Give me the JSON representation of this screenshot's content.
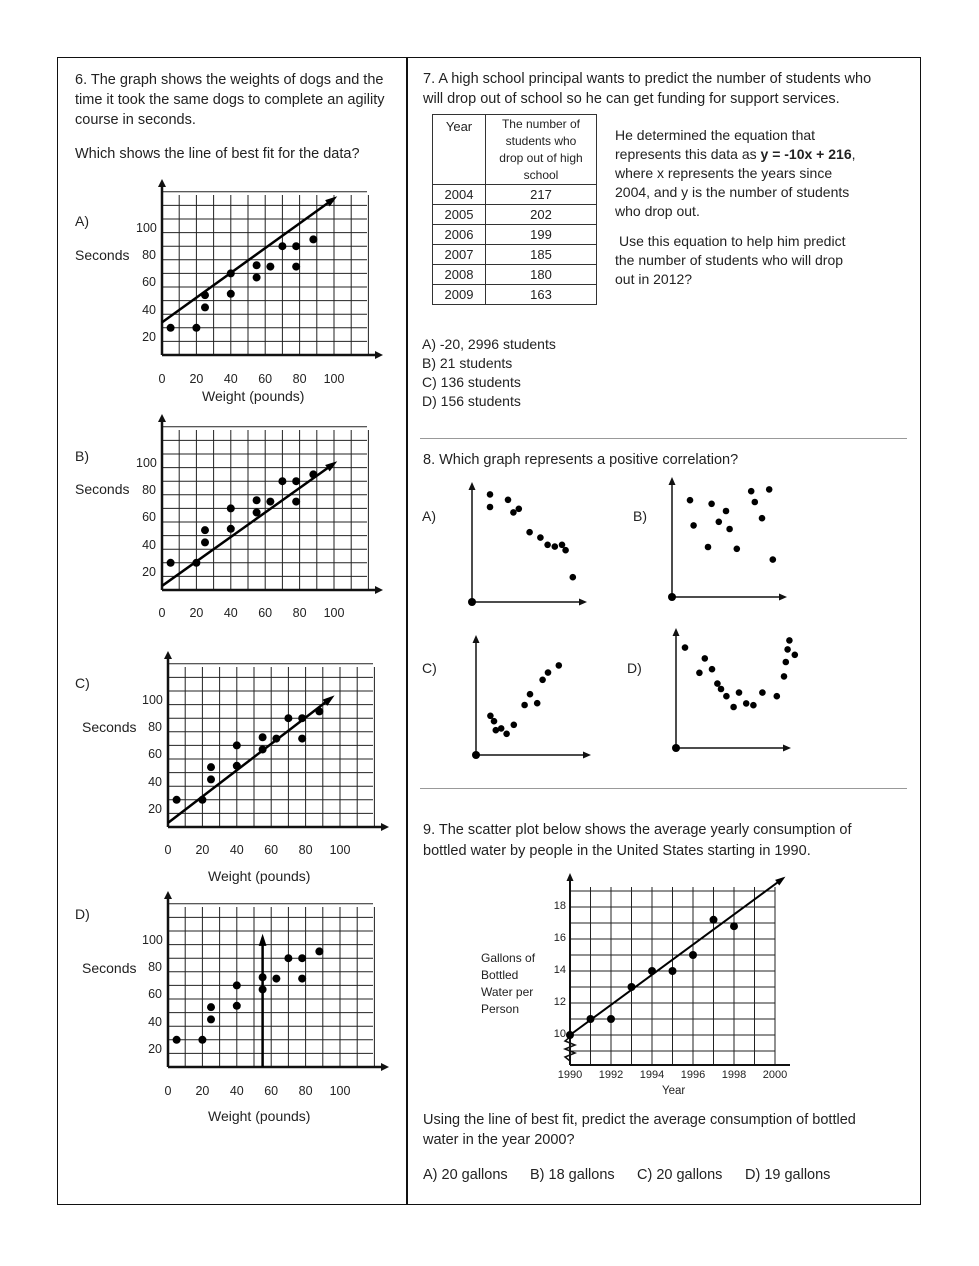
{
  "q6": {
    "line1": "6.  The graph shows the weights of dogs and the",
    "line2": "time it took the same dogs to complete an agility",
    "line3": "course in seconds.",
    "question": "Which shows the line of best fit for the data?",
    "y_axis_label": "Seconds",
    "x_axis_title": "Weight (pounds)",
    "options": [
      {
        "letter": "A)"
      },
      {
        "letter": "B)"
      },
      {
        "letter": "C)"
      },
      {
        "letter": "D)"
      }
    ],
    "y_ticks": [
      "100",
      "80",
      "60",
      "40",
      "20"
    ],
    "x_ticks": [
      "0",
      "20",
      "40",
      "60",
      "80",
      "100"
    ]
  },
  "chart_data": [
    {
      "type": "scatter",
      "id": "q6-A",
      "x": [
        5,
        20,
        25,
        25,
        40,
        40,
        55,
        55,
        63,
        70,
        78,
        78,
        88
      ],
      "y": [
        20,
        20,
        44,
        35,
        60,
        45,
        66,
        57,
        65,
        80,
        80,
        65,
        85
      ],
      "xlim": [
        0,
        125
      ],
      "ylim": [
        0,
        125
      ],
      "fit_line": [
        [
          0,
          24
        ],
        [
          100,
          115
        ]
      ]
    },
    {
      "type": "scatter",
      "id": "q6-B",
      "x": [
        5,
        20,
        25,
        25,
        40,
        40,
        55,
        55,
        63,
        70,
        78,
        78,
        88
      ],
      "y": [
        20,
        20,
        44,
        35,
        60,
        45,
        66,
        57,
        65,
        80,
        80,
        65,
        85
      ],
      "xlim": [
        0,
        125
      ],
      "ylim": [
        0,
        125
      ],
      "fit_line": [
        [
          0,
          3
        ],
        [
          100,
          93
        ]
      ]
    },
    {
      "type": "scatter",
      "id": "q6-C",
      "x": [
        5,
        20,
        25,
        25,
        40,
        40,
        55,
        55,
        63,
        70,
        78,
        78,
        88
      ],
      "y": [
        20,
        20,
        44,
        35,
        60,
        45,
        66,
        57,
        65,
        80,
        80,
        65,
        85
      ],
      "xlim": [
        0,
        125
      ],
      "ylim": [
        0,
        125
      ],
      "fit_line": [
        [
          0,
          3
        ],
        [
          95,
          95
        ]
      ]
    },
    {
      "type": "scatter",
      "id": "q6-D",
      "x": [
        5,
        20,
        25,
        25,
        40,
        40,
        55,
        55,
        63,
        70,
        78,
        78,
        88
      ],
      "y": [
        20,
        20,
        44,
        35,
        60,
        45,
        66,
        57,
        65,
        80,
        80,
        65,
        85
      ],
      "xlim": [
        0,
        125
      ],
      "ylim": [
        0,
        125
      ],
      "fit_line": [
        [
          55,
          0
        ],
        [
          55,
          95
        ]
      ]
    },
    {
      "type": "scatter",
      "id": "q8-A",
      "x": [
        1,
        1,
        2,
        2.3,
        2.6,
        3.2,
        3.8,
        4.2,
        4.6,
        5,
        5.2,
        5.6
      ],
      "y": [
        8.2,
        7.5,
        7.9,
        7.2,
        7.4,
        6.1,
        5.8,
        5.4,
        5.3,
        5.4,
        5.1,
        3.6
      ]
    },
    {
      "type": "scatter",
      "id": "q8-B",
      "x": [
        1,
        1.2,
        2,
        2.2,
        2.6,
        3,
        3.2,
        3.6,
        4.4,
        4.6,
        5,
        5.4,
        5.6
      ],
      "y": [
        7.6,
        6.2,
        5,
        7.4,
        6.4,
        7,
        6,
        4.9,
        8.1,
        7.5,
        6.6,
        8.2,
        4.3
      ]
    },
    {
      "type": "scatter",
      "id": "q8-C",
      "x": [
        0.8,
        1,
        1.1,
        1.4,
        1.7,
        2.1,
        2.7,
        3,
        3.4,
        3.7,
        4,
        4.6
      ],
      "y": [
        4.4,
        4.1,
        3.6,
        3.7,
        3.4,
        3.9,
        5,
        5.6,
        5.1,
        6.4,
        6.8,
        7.2
      ]
    },
    {
      "type": "scatter",
      "id": "q8-D",
      "x": [
        0.5,
        1.3,
        1.6,
        2,
        2.3,
        2.5,
        2.8,
        3.2,
        3.5,
        3.9,
        4.3,
        4.8,
        5.6,
        6,
        6.1,
        6.2,
        6.3,
        6.6
      ],
      "y": [
        7.8,
        6.4,
        7.2,
        6.6,
        5.8,
        5.5,
        5.1,
        4.5,
        5.3,
        4.7,
        4.6,
        5.3,
        5.1,
        6.2,
        7,
        7.7,
        8.2,
        7.4
      ]
    },
    {
      "type": "scatter",
      "id": "q9",
      "title": "",
      "xlabel": "Year",
      "ylabel": "Gallons of Bottled Water per Person",
      "x": [
        1990,
        1991,
        1992,
        1993,
        1994,
        1995,
        1996,
        1997,
        1998
      ],
      "y": [
        10,
        11,
        11,
        13,
        14,
        14,
        15,
        17.2,
        16.8
      ],
      "xlim": [
        1990,
        2000
      ],
      "ylim": [
        10,
        18
      ],
      "x_ticks": [
        "1990",
        "1992",
        "1994",
        "1996",
        "1998",
        "2000"
      ],
      "y_ticks": [
        "18",
        "16",
        "14",
        "12",
        "10"
      ],
      "fit_line": [
        [
          1990,
          10
        ],
        [
          2000,
          19.6
        ]
      ]
    }
  ],
  "q7": {
    "line1": "7.  A high school principal wants to predict the number of students who",
    "line2": "will drop out of school so he can get funding for support services.",
    "table_head_year": "Year",
    "table_head_count": [
      "The number of",
      "students who",
      "drop out of high",
      "school"
    ],
    "rows": [
      {
        "year": "2004",
        "count": "217"
      },
      {
        "year": "2005",
        "count": "202"
      },
      {
        "year": "2006",
        "count": "199"
      },
      {
        "year": "2007",
        "count": "185"
      },
      {
        "year": "2008",
        "count": "180"
      },
      {
        "year": "2009",
        "count": "163"
      }
    ],
    "desc1a": "He determined the equation that",
    "desc2a": "represents this data as ",
    "equation": "y = -10x + 216",
    "desc2b": ",",
    "desc3": "where x represents the years since",
    "desc4": "2004, and y is the number of students",
    "desc5": "who drop out.",
    "use1": "Use this equation to help him predict",
    "use2": "the number of students who will drop",
    "use3": "out in 2012?",
    "answers": [
      "A)  -20, 2996 students",
      "B) 21 students",
      "C)  136 students",
      "D)  156 students"
    ]
  },
  "q8": {
    "question": "8.  Which graph represents a positive correlation?",
    "labels": [
      "A)",
      "B)",
      "C)",
      "D)"
    ]
  },
  "q9": {
    "line1": "9.  The scatter plot below shows the average yearly consumption of",
    "line2": "bottled water by people in the United States starting in 1990.",
    "ylabel_lines": [
      "Gallons of",
      "Bottled",
      "Water per",
      "Person"
    ],
    "xlabel": "Year",
    "x_ticks": [
      "1990",
      "1992",
      "1994",
      "1996",
      "1998",
      "2000"
    ],
    "y_ticks": [
      "18",
      "16",
      "14",
      "12",
      "10"
    ],
    "question1": "Using the line of best fit, predict the average consumption of bottled",
    "question2": "water in the year 2000?",
    "answers": [
      "A) 20 gallons",
      "B) 18 gallons",
      "C) 20 gallons",
      "D)  19 gallons"
    ]
  }
}
